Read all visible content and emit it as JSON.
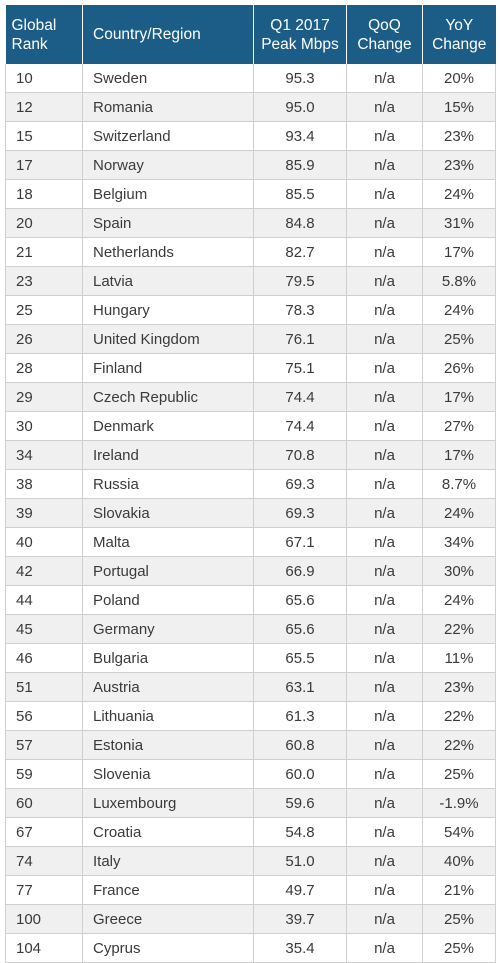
{
  "chart_data": {
    "type": "table",
    "headers": {
      "rank": [
        "Global",
        "Rank"
      ],
      "country": "Country/Region",
      "peak": [
        "Q1 2017",
        "Peak Mbps"
      ],
      "qoq": [
        "QoQ",
        "Change"
      ],
      "yoy": [
        "YoY",
        "Change"
      ]
    },
    "rows": [
      {
        "rank": "10",
        "country": "Sweden",
        "peak": "95.3",
        "qoq": "n/a",
        "yoy": "20%"
      },
      {
        "rank": "12",
        "country": "Romania",
        "peak": "95.0",
        "qoq": "n/a",
        "yoy": "15%"
      },
      {
        "rank": "15",
        "country": "Switzerland",
        "peak": "93.4",
        "qoq": "n/a",
        "yoy": "23%"
      },
      {
        "rank": "17",
        "country": "Norway",
        "peak": "85.9",
        "qoq": "n/a",
        "yoy": "23%"
      },
      {
        "rank": "18",
        "country": "Belgium",
        "peak": "85.5",
        "qoq": "n/a",
        "yoy": "24%"
      },
      {
        "rank": "20",
        "country": "Spain",
        "peak": "84.8",
        "qoq": "n/a",
        "yoy": "31%"
      },
      {
        "rank": "21",
        "country": "Netherlands",
        "peak": "82.7",
        "qoq": "n/a",
        "yoy": "17%"
      },
      {
        "rank": "23",
        "country": "Latvia",
        "peak": "79.5",
        "qoq": "n/a",
        "yoy": "5.8%"
      },
      {
        "rank": "25",
        "country": "Hungary",
        "peak": "78.3",
        "qoq": "n/a",
        "yoy": "24%"
      },
      {
        "rank": "26",
        "country": "United Kingdom",
        "peak": "76.1",
        "qoq": "n/a",
        "yoy": "25%"
      },
      {
        "rank": "28",
        "country": "Finland",
        "peak": "75.1",
        "qoq": "n/a",
        "yoy": "26%"
      },
      {
        "rank": "29",
        "country": "Czech Republic",
        "peak": "74.4",
        "qoq": "n/a",
        "yoy": "17%"
      },
      {
        "rank": "30",
        "country": "Denmark",
        "peak": "74.4",
        "qoq": "n/a",
        "yoy": "27%"
      },
      {
        "rank": "34",
        "country": "Ireland",
        "peak": "70.8",
        "qoq": "n/a",
        "yoy": "17%"
      },
      {
        "rank": "38",
        "country": "Russia",
        "peak": "69.3",
        "qoq": "n/a",
        "yoy": "8.7%"
      },
      {
        "rank": "39",
        "country": "Slovakia",
        "peak": "69.3",
        "qoq": "n/a",
        "yoy": "24%"
      },
      {
        "rank": "40",
        "country": "Malta",
        "peak": "67.1",
        "qoq": "n/a",
        "yoy": "34%"
      },
      {
        "rank": "42",
        "country": "Portugal",
        "peak": "66.9",
        "qoq": "n/a",
        "yoy": "30%"
      },
      {
        "rank": "44",
        "country": "Poland",
        "peak": "65.6",
        "qoq": "n/a",
        "yoy": "24%"
      },
      {
        "rank": "45",
        "country": "Germany",
        "peak": "65.6",
        "qoq": "n/a",
        "yoy": "22%"
      },
      {
        "rank": "46",
        "country": "Bulgaria",
        "peak": "65.5",
        "qoq": "n/a",
        "yoy": "11%"
      },
      {
        "rank": "51",
        "country": "Austria",
        "peak": "63.1",
        "qoq": "n/a",
        "yoy": "23%"
      },
      {
        "rank": "56",
        "country": "Lithuania",
        "peak": "61.3",
        "qoq": "n/a",
        "yoy": "22%"
      },
      {
        "rank": "57",
        "country": "Estonia",
        "peak": "60.8",
        "qoq": "n/a",
        "yoy": "22%"
      },
      {
        "rank": "59",
        "country": "Slovenia",
        "peak": "60.0",
        "qoq": "n/a",
        "yoy": "25%"
      },
      {
        "rank": "60",
        "country": "Luxembourg",
        "peak": "59.6",
        "qoq": "n/a",
        "yoy": "-1.9%"
      },
      {
        "rank": "67",
        "country": "Croatia",
        "peak": "54.8",
        "qoq": "n/a",
        "yoy": "54%"
      },
      {
        "rank": "74",
        "country": "Italy",
        "peak": "51.0",
        "qoq": "n/a",
        "yoy": "40%"
      },
      {
        "rank": "77",
        "country": "France",
        "peak": "49.7",
        "qoq": "n/a",
        "yoy": "21%"
      },
      {
        "rank": "100",
        "country": "Greece",
        "peak": "39.7",
        "qoq": "n/a",
        "yoy": "25%"
      },
      {
        "rank": "104",
        "country": "Cyprus",
        "peak": "35.4",
        "qoq": "n/a",
        "yoy": "25%"
      }
    ]
  },
  "colors": {
    "header_bg": "#1b5d86",
    "header_text": "#ffffff",
    "row_stripe": "#f0f0f0"
  }
}
